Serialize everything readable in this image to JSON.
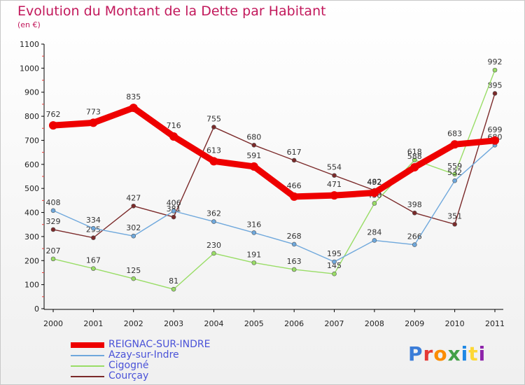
{
  "chart_data": {
    "type": "line",
    "title": "Evolution du Montant de la Dette par Habitant",
    "subtitle": "(en €)",
    "x": [
      "2000",
      "2001",
      "2002",
      "2003",
      "2004",
      "2005",
      "2006",
      "2007",
      "2008",
      "2009",
      "2010",
      "2011"
    ],
    "ylim": [
      0,
      1100
    ],
    "yticks": [
      0,
      100,
      200,
      300,
      400,
      500,
      600,
      700,
      800,
      900,
      1000,
      1100
    ],
    "grid": false,
    "legend_position": "bottom-left",
    "series": [
      {
        "name": "REIGNAC-SUR-INDRE",
        "color": "#ee0000",
        "values": [
          762,
          773,
          835,
          716,
          613,
          591,
          466,
          471,
          482,
          588,
          683,
          699
        ]
      },
      {
        "name": "Azay-sur-Indre",
        "color": "#6fa8dc",
        "values": [
          408,
          334,
          302,
          406,
          362,
          316,
          268,
          195,
          284,
          266,
          532,
          680
        ]
      },
      {
        "name": "Cigogné",
        "color": "#99dd66",
        "values": [
          207,
          167,
          125,
          81,
          230,
          191,
          163,
          145,
          438,
          618,
          559,
          992
        ]
      },
      {
        "name": "Courçay",
        "color": "#7b2a2a",
        "values": [
          329,
          295,
          427,
          381,
          755,
          680,
          617,
          554,
          492,
          398,
          351,
          895
        ]
      }
    ]
  },
  "branding": {
    "logo_text": "Proxiti"
  }
}
